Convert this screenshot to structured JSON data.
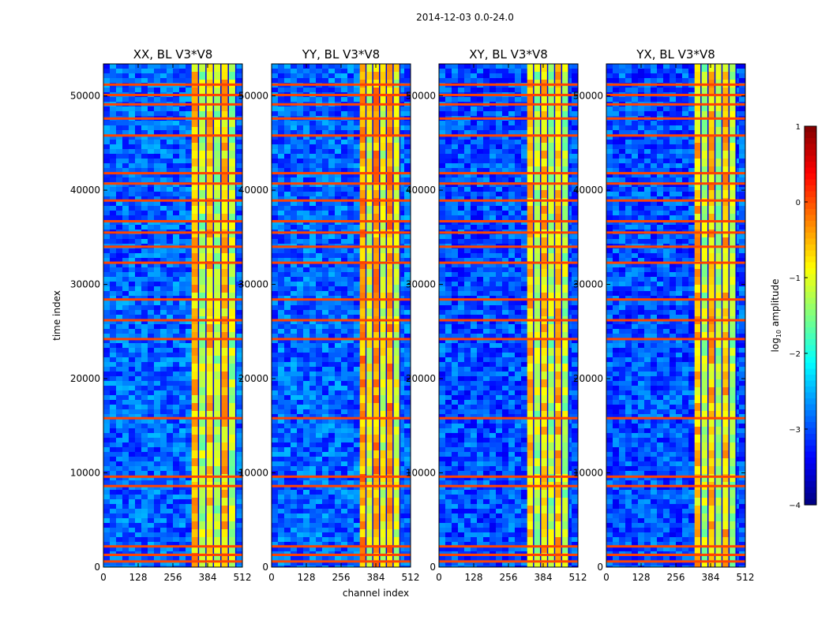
{
  "chart_data": {
    "type": "heatmap",
    "title": "2014-12-03 0.0-24.0",
    "xlabel": "channel index",
    "ylabel": "time index",
    "colorbar": {
      "label_prefix": "log",
      "label_sub": "10",
      "label_suffix": " amplitude",
      "range": [
        -4,
        1
      ],
      "ticks": [
        1,
        0,
        -1,
        -2,
        -3,
        -4
      ],
      "tick_labels": [
        "1",
        "0",
        "−1",
        "−2",
        "−3",
        "−4"
      ],
      "colormap": "jet"
    },
    "xlim": [
      0,
      512
    ],
    "ylim": [
      0,
      53400
    ],
    "xticks": [
      0,
      128,
      256,
      384,
      512
    ],
    "xtick_labels": [
      "0",
      "128",
      "256",
      "384",
      "512"
    ],
    "yticks": [
      0,
      10000,
      20000,
      30000,
      40000,
      50000
    ],
    "ytick_labels": [
      "0",
      "10000",
      "20000",
      "30000",
      "40000",
      "50000"
    ],
    "panels": [
      {
        "title": "XX, BL V3*V8",
        "band_channels": [
          325,
          490
        ],
        "background_level": -2.9,
        "band_level": -1.0
      },
      {
        "title": "YY, BL V3*V8",
        "band_channels": [
          325,
          475
        ],
        "background_level": -2.9,
        "band_level": -0.8
      },
      {
        "title": "XY, BL V3*V8",
        "band_channels": [
          325,
          480
        ],
        "background_level": -3.0,
        "band_level": -1.0
      },
      {
        "title": "YX, BL V3*V8",
        "band_channels": [
          325,
          480
        ],
        "background_level": -3.0,
        "band_level": -1.0
      }
    ],
    "flagged_time_rows": [
      600,
      1300,
      2200,
      8600,
      9600,
      15800,
      24200,
      26200,
      28400,
      32300,
      34000,
      35500,
      36700,
      38900,
      40700,
      41800,
      45800,
      47600,
      49100,
      50100,
      51200
    ]
  }
}
